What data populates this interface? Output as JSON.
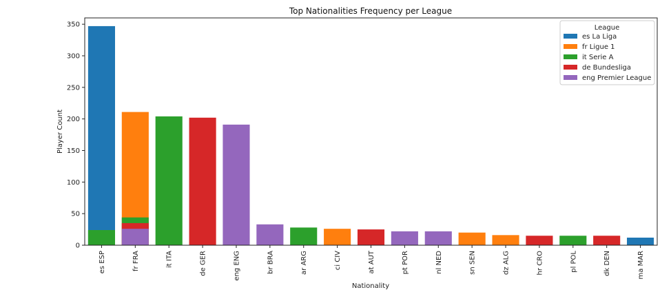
{
  "chart_data": {
    "type": "bar",
    "title": "Top Nationalities Frequency per League",
    "xlabel": "Nationality",
    "ylabel": "Player Count",
    "ylim": [
      0,
      360
    ],
    "yticks": [
      0,
      50,
      100,
      150,
      200,
      250,
      300,
      350
    ],
    "grid": false,
    "legend": {
      "title": "League",
      "placement": "top-right"
    },
    "categories": [
      "es ESP",
      "fr FRA",
      "it ITA",
      "de GER",
      "eng ENG",
      "br BRA",
      "ar ARG",
      "ci CIV",
      "at AUT",
      "pt POR",
      "nl NED",
      "sn SEN",
      "dz ALG",
      "hr CRO",
      "pl POL",
      "dk DEN",
      "ma MAR"
    ],
    "series": [
      {
        "name": "es La Liga",
        "color": "#1f77b4",
        "values": [
          347,
          null,
          null,
          null,
          null,
          null,
          null,
          null,
          null,
          null,
          null,
          null,
          null,
          null,
          null,
          null,
          12
        ]
      },
      {
        "name": "fr Ligue 1",
        "color": "#ff7f0e",
        "values": [
          null,
          211,
          null,
          null,
          null,
          null,
          null,
          26,
          null,
          null,
          null,
          20,
          16,
          null,
          null,
          null,
          null
        ]
      },
      {
        "name": "it Serie A",
        "color": "#2ca02c",
        "values": [
          24,
          44,
          204,
          null,
          null,
          null,
          28,
          null,
          null,
          null,
          null,
          null,
          null,
          null,
          15,
          null,
          null
        ]
      },
      {
        "name": "de Bundesliga",
        "color": "#d62728",
        "values": [
          null,
          35,
          null,
          202,
          null,
          null,
          null,
          null,
          25,
          null,
          null,
          null,
          null,
          15,
          null,
          15,
          null
        ]
      },
      {
        "name": "eng Premier League",
        "color": "#9467bd",
        "values": [
          null,
          26,
          null,
          null,
          191,
          33,
          null,
          null,
          null,
          22,
          22,
          null,
          null,
          null,
          null,
          null,
          null
        ]
      }
    ]
  }
}
